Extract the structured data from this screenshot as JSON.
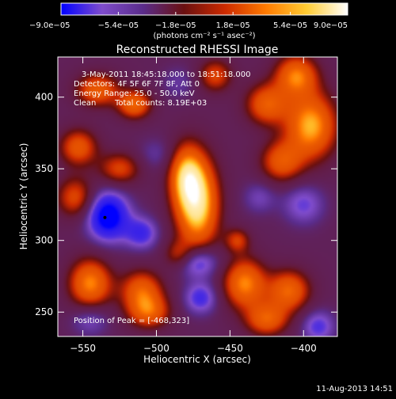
{
  "chart_data": {
    "type": "heatmap",
    "title": "Reconstructed RHESSI Image",
    "xlabel": "Heliocentric X (arcsec)",
    "ylabel": "Heliocentric Y (arcsec)",
    "xlim": [
      -567,
      -377
    ],
    "ylim": [
      233,
      428
    ],
    "xticks": [
      -550,
      -500,
      -450,
      -400
    ],
    "yticks": [
      250,
      300,
      350,
      400
    ],
    "xtick_labels": [
      "−550",
      "−500",
      "−450",
      "−400"
    ],
    "ytick_labels": [
      "250",
      "300",
      "350",
      "400"
    ],
    "colorbar": {
      "min": -9e-05,
      "max": 9e-05,
      "tick_labels": [
        "−9.0e−05",
        "−5.4e−05",
        "−1.8e−05",
        "1.8e−05",
        "5.4e−05",
        "9.0e−05"
      ],
      "units_label": "(photons cm⁻² s⁻¹ asec⁻²)",
      "colors": [
        "#0000ff",
        "#7f4ccc",
        "#5a2c8a",
        "#6a1010",
        "#cc2a00",
        "#ff7a00",
        "#ffcc33",
        "#ffffff"
      ]
    },
    "annotations": [
      "3-May-2011 18:45:18.000 to 18:51:18.000",
      "Detectors: 4F 5F 6F 7F 8F, Att 0",
      "Energy Range: 25.0 - 50.0 keV",
      "Clean",
      "Total counts: 8.19E+03",
      "Position of Peak = [-468,323]"
    ],
    "peak": {
      "x": -468,
      "y": 323
    },
    "marker": {
      "x": -535,
      "y": 316
    },
    "hotspots": [
      {
        "x": -472,
        "y": 325,
        "v": 9e-05,
        "sx": 10,
        "sy": 22
      },
      {
        "x": -480,
        "y": 345,
        "v": 6e-05,
        "sx": 8,
        "sy": 15
      },
      {
        "x": -395,
        "y": 380,
        "v": 7.5e-05,
        "sx": 12,
        "sy": 16
      },
      {
        "x": -405,
        "y": 415,
        "v": 6e-05,
        "sx": 10,
        "sy": 10
      },
      {
        "x": -425,
        "y": 395,
        "v": 5e-05,
        "sx": 10,
        "sy": 10
      },
      {
        "x": -415,
        "y": 355,
        "v": 4.5e-05,
        "sx": 10,
        "sy": 10
      },
      {
        "x": -540,
        "y": 405,
        "v": 5e-05,
        "sx": 10,
        "sy": 8
      },
      {
        "x": -515,
        "y": 395,
        "v": 5.5e-05,
        "sx": 8,
        "sy": 7
      },
      {
        "x": -553,
        "y": 365,
        "v": 4.5e-05,
        "sx": 9,
        "sy": 9
      },
      {
        "x": -555,
        "y": 330,
        "v": 3.8e-05,
        "sx": 9,
        "sy": 10
      },
      {
        "x": -525,
        "y": 350,
        "v": 3.5e-05,
        "sx": 10,
        "sy": 8
      },
      {
        "x": -545,
        "y": 270,
        "v": 6.5e-05,
        "sx": 10,
        "sy": 12
      },
      {
        "x": -510,
        "y": 265,
        "v": 5e-05,
        "sx": 10,
        "sy": 10
      },
      {
        "x": -505,
        "y": 250,
        "v": 4.5e-05,
        "sx": 10,
        "sy": 8
      },
      {
        "x": -440,
        "y": 270,
        "v": 6.5e-05,
        "sx": 10,
        "sy": 12
      },
      {
        "x": -410,
        "y": 265,
        "v": 5.5e-05,
        "sx": 10,
        "sy": 10
      },
      {
        "x": -425,
        "y": 245,
        "v": 5e-05,
        "sx": 10,
        "sy": 8
      },
      {
        "x": -460,
        "y": 415,
        "v": 3.5e-05,
        "sx": 8,
        "sy": 8
      },
      {
        "x": -445,
        "y": 300,
        "v": 3e-05,
        "sx": 6,
        "sy": 6
      },
      {
        "x": -485,
        "y": 290,
        "v": 2.5e-05,
        "sx": 7,
        "sy": 7
      },
      {
        "x": -533,
        "y": 317,
        "v": -9e-05,
        "sx": 10,
        "sy": 12
      },
      {
        "x": -510,
        "y": 305,
        "v": -5.5e-05,
        "sx": 8,
        "sy": 8
      },
      {
        "x": -472,
        "y": 285,
        "v": -6.5e-05,
        "sx": 10,
        "sy": 8
      },
      {
        "x": -470,
        "y": 260,
        "v": -5.5e-05,
        "sx": 8,
        "sy": 8
      },
      {
        "x": -400,
        "y": 325,
        "v": -4.5e-05,
        "sx": 10,
        "sy": 10
      },
      {
        "x": -430,
        "y": 330,
        "v": -3.5e-05,
        "sx": 8,
        "sy": 8
      },
      {
        "x": -500,
        "y": 360,
        "v": -3e-05,
        "sx": 9,
        "sy": 8
      },
      {
        "x": -545,
        "y": 245,
        "v": -4e-05,
        "sx": 9,
        "sy": 8
      },
      {
        "x": -390,
        "y": 240,
        "v": -5e-05,
        "sx": 8,
        "sy": 8
      },
      {
        "x": -485,
        "y": 410,
        "v": -3e-05,
        "sx": 8,
        "sy": 8
      }
    ]
  },
  "footer": {
    "timestamp": "11-Aug-2013 14:51"
  },
  "colors": {
    "background": "#000000",
    "foreground": "#ffffff",
    "base_level": -3.2e-05
  }
}
